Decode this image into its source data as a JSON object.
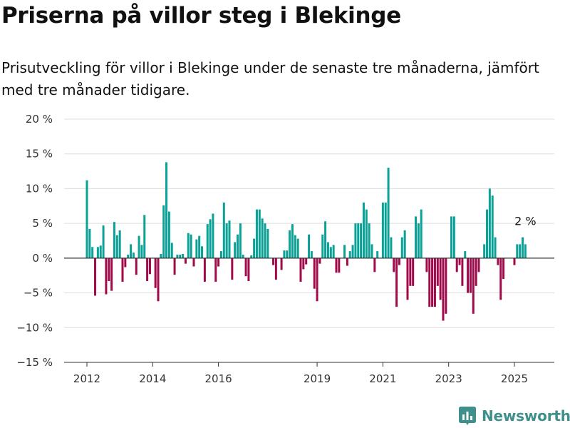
{
  "title": "Priserna på villor steg i Blekinge",
  "subtitle": "Prisutveckling för villor i Blekinge under de senaste tre månaderna, jämfört med tre månader tidigare.",
  "brand": "Newsworthy",
  "colors": {
    "positive": "#0aa197",
    "negative": "#a10a4a",
    "grid": "#dddddd",
    "brand": "#3f8f8a"
  },
  "chart_data": {
    "type": "bar",
    "ylim": [
      -15,
      20
    ],
    "yticks": [
      -15,
      -10,
      -5,
      0,
      5,
      10,
      15,
      20
    ],
    "ytick_labels": [
      "−15 %",
      "−10 %",
      "−5 %",
      "0 %",
      "5 %",
      "10 %",
      "15 %",
      "20 %"
    ],
    "xticks": [
      {
        "label": "2012",
        "x": 2012.0
      },
      {
        "label": "2014",
        "x": 2014.0
      },
      {
        "label": "2016",
        "x": 2016.0
      },
      {
        "label": "2019",
        "x": 2019.0
      },
      {
        "label": "2021",
        "x": 2021.0
      },
      {
        "label": "2023",
        "x": 2023.0
      },
      {
        "label": "2025",
        "x": 2025.0
      }
    ],
    "x_start": 2012.0,
    "x_step": 0.08333,
    "values": [
      11.2,
      4.2,
      1.6,
      -5.4,
      1.6,
      1.8,
      4.7,
      -5.2,
      -3.3,
      -4.7,
      5.2,
      3.3,
      4.0,
      -3.4,
      -1.3,
      0.5,
      2.0,
      0.8,
      -2.4,
      3.2,
      1.9,
      6.2,
      -3.3,
      -2.3,
      0.0,
      -4.3,
      -6.2,
      0.6,
      7.6,
      13.8,
      6.7,
      2.2,
      -2.4,
      0.5,
      0.5,
      0.6,
      -0.8,
      3.6,
      3.4,
      -1.2,
      2.7,
      3.2,
      1.7,
      -3.4,
      4.9,
      5.6,
      6.4,
      -3.4,
      -1.2,
      1.0,
      8.0,
      5.0,
      5.4,
      -3.1,
      2.3,
      3.4,
      5.0,
      0.5,
      -2.6,
      -3.3,
      0.4,
      2.8,
      7.0,
      7.0,
      5.7,
      5.0,
      4.2,
      0.0,
      -1.0,
      -3.1,
      0.0,
      -1.7,
      1.1,
      1.1,
      4.0,
      4.9,
      3.3,
      2.8,
      -3.4,
      -1.6,
      -0.9,
      3.4,
      1.0,
      -4.4,
      -6.2,
      -0.8,
      3.4,
      5.3,
      2.3,
      1.6,
      1.9,
      -2.1,
      -2.1,
      0.0,
      1.9,
      -1.1,
      1.0,
      1.9,
      5.0,
      5.0,
      5.0,
      8.0,
      7.0,
      5.0,
      2.0,
      -2.0,
      1.0,
      0.0,
      8.0,
      8.0,
      13.0,
      3.0,
      -2.0,
      -7.0,
      -1.0,
      3.0,
      4.0,
      -6.0,
      -4.0,
      -4.0,
      6.0,
      5.0,
      7.0,
      0.0,
      -2.0,
      -7.0,
      -7.0,
      -7.0,
      -4.0,
      -6.0,
      -9.0,
      -8.0,
      0.0,
      6.0,
      6.0,
      -2.0,
      -1.0,
      -4.0,
      1.0,
      -5.0,
      -5.0,
      -8.0,
      -4.0,
      -2.0,
      0.0,
      2.0,
      7.0,
      10.0,
      9.0,
      3.0,
      -1.0,
      -6.0,
      -3.0,
      0.0,
      0.0,
      0.0,
      -1.0,
      2.0,
      2.0,
      3.0,
      2.0
    ],
    "annotation": {
      "text": "2 %",
      "index": 160
    }
  }
}
